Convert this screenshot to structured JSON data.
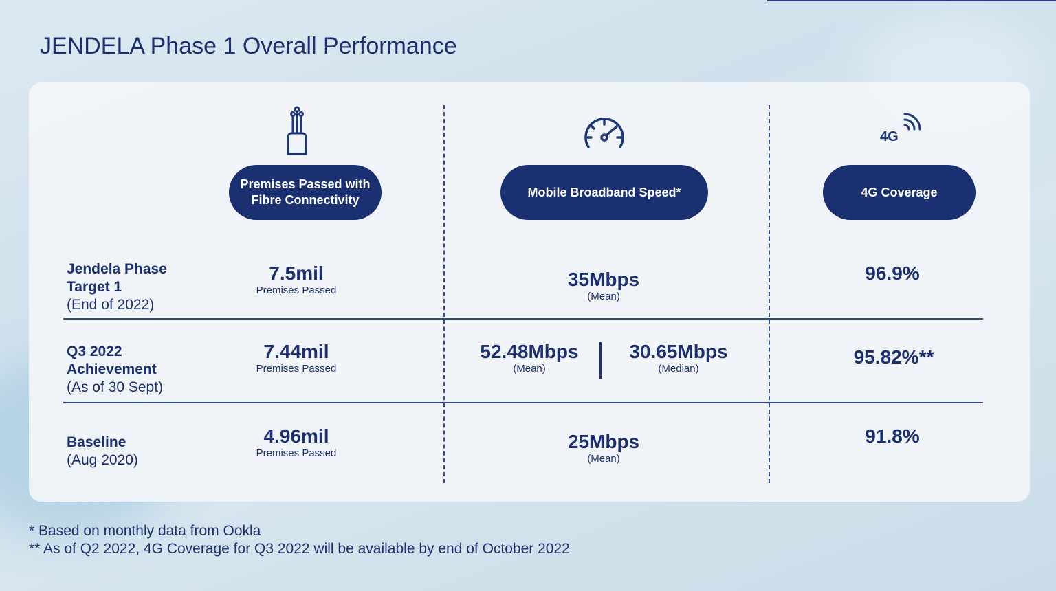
{
  "title": "JENDELA Phase 1 Overall Performance",
  "colors": {
    "navy": "#1a3070",
    "text": "#1c2f6e"
  },
  "columns": [
    {
      "label": "Premises Passed with\nFibre Connectivity",
      "icon": "fibre-icon"
    },
    {
      "label": "Mobile Broadband Speed*",
      "icon": "speedometer-icon"
    },
    {
      "label": "4G Coverage",
      "icon": "4g-signal-icon",
      "icon_text": "4G"
    }
  ],
  "rows": [
    {
      "label_bold": "Jendela Phase\nTarget 1",
      "label_sub": "(End of 2022)",
      "fibre": {
        "value": "7.5mil",
        "caption": "Premises Passed"
      },
      "speed": {
        "value": "35Mbps",
        "caption": "(Mean)"
      },
      "coverage": {
        "value": "96.9%"
      }
    },
    {
      "label_bold": "Q3 2022\nAchievement",
      "label_sub": "(As of 30 Sept)",
      "fibre": {
        "value": "7.44mil",
        "caption": "Premises Passed"
      },
      "speed_mean": {
        "value": "52.48Mbps",
        "caption": "(Mean)"
      },
      "speed_median": {
        "value": "30.65Mbps",
        "caption": "(Median)"
      },
      "coverage": {
        "value": "95.82%**"
      }
    },
    {
      "label_bold": "Baseline",
      "label_sub": "(Aug 2020)",
      "fibre": {
        "value": "4.96mil",
        "caption": "Premises Passed"
      },
      "speed": {
        "value": "25Mbps",
        "caption": "(Mean)"
      },
      "coverage": {
        "value": "91.8%"
      }
    }
  ],
  "footnotes": [
    "* Based on monthly data from Ookla",
    "** As of Q2 2022, 4G Coverage for Q3 2022 will be available by end of October 2022"
  ]
}
